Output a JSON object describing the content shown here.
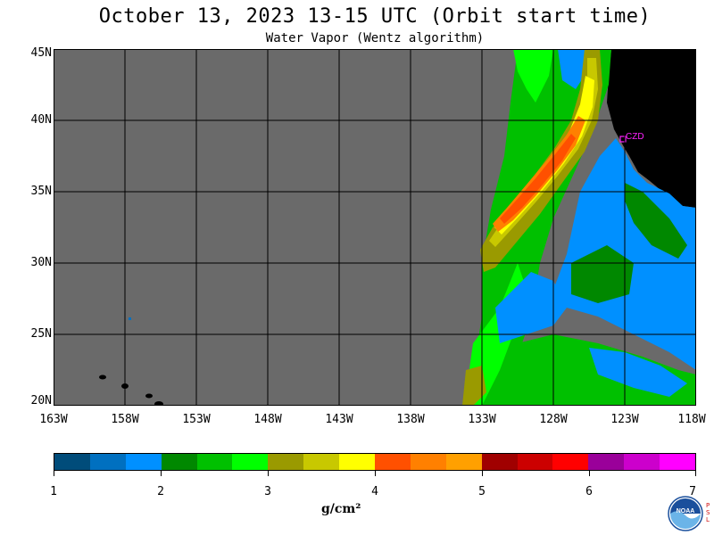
{
  "title": "October 13, 2023  13-15 UTC  (Orbit start time)",
  "subtitle": "Water Vapor (Wentz algorithm)",
  "map": {
    "lat_labels": [
      "45N",
      "40N",
      "35N",
      "30N",
      "25N",
      "20N"
    ],
    "lon_labels": [
      "163W",
      "158W",
      "153W",
      "148W",
      "143W",
      "138W",
      "133W",
      "128W",
      "123W",
      "118W"
    ],
    "lat_range": [
      20,
      45
    ],
    "lon_range": [
      -163,
      -118
    ],
    "station_label": "CZD",
    "colors": {
      "no_data": "#6a6a6a",
      "land": "#000000",
      "grid": "#000000",
      "station": "#ff22ff"
    }
  },
  "colorbar": {
    "colors": [
      "#004c7a",
      "#0070c0",
      "#0090ff",
      "#008800",
      "#00c000",
      "#00ff00",
      "#9a9a00",
      "#c8c800",
      "#ffff00",
      "#ff5000",
      "#ff8000",
      "#ffa000",
      "#a00000",
      "#cc0000",
      "#ff0000",
      "#9a009a",
      "#cc00cc",
      "#ff00ff"
    ],
    "tick_labels": [
      "1",
      "2",
      "3",
      "4",
      "5",
      "6",
      "7"
    ],
    "units": "g/cm²"
  },
  "logos": {
    "noaa": "NOAA",
    "psl": "PSL"
  }
}
